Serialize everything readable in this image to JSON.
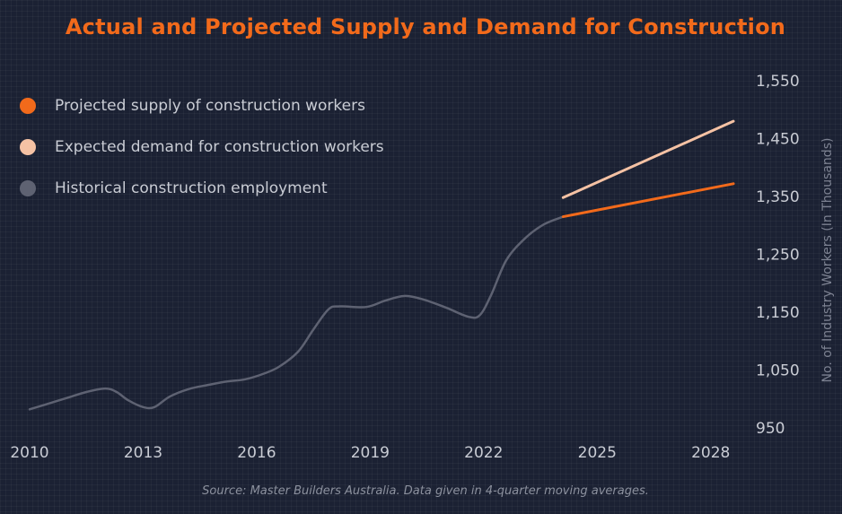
{
  "chart_data": {
    "type": "line",
    "title": "Actual and Projected Supply and Demand for Construction",
    "ylabel": "No. of Industry Workers (In Thousands)",
    "source": "Source: Master Builders Australia. Data given in 4-quarter moving averages.",
    "x_ticks": [
      "2010",
      "2013",
      "2016",
      "2019",
      "2022",
      "2025",
      "2028"
    ],
    "y_ticks": [
      "950",
      "1,050",
      "1,150",
      "1,250",
      "1,350",
      "1,450",
      "1,550"
    ],
    "xlim": [
      2010,
      2028.6
    ],
    "ylim": [
      950,
      1550
    ],
    "grid": true,
    "legend_position": "top-left",
    "series": [
      {
        "name": "Projected supply of construction workers",
        "color": "#f26a1b",
        "points": [
          [
            2024.1,
            1315
          ],
          [
            2028.6,
            1372
          ]
        ]
      },
      {
        "name": "Expected demand for construction workers",
        "color": "#f5c2a4",
        "points": [
          [
            2024.1,
            1348
          ],
          [
            2028.6,
            1480
          ]
        ]
      },
      {
        "name": "Historical construction employment",
        "color": "#5e6272",
        "points": [
          [
            2010.0,
            982
          ],
          [
            2010.5,
            992
          ],
          [
            2011.0,
            1002
          ],
          [
            2011.5,
            1012
          ],
          [
            2012.0,
            1018
          ],
          [
            2012.3,
            1012
          ],
          [
            2012.6,
            998
          ],
          [
            2013.0,
            986
          ],
          [
            2013.3,
            986
          ],
          [
            2013.7,
            1004
          ],
          [
            2014.2,
            1017
          ],
          [
            2014.7,
            1024
          ],
          [
            2015.2,
            1030
          ],
          [
            2015.7,
            1034
          ],
          [
            2016.2,
            1044
          ],
          [
            2016.6,
            1056
          ],
          [
            2017.1,
            1082
          ],
          [
            2017.5,
            1120
          ],
          [
            2017.9,
            1155
          ],
          [
            2018.2,
            1160
          ],
          [
            2018.9,
            1159
          ],
          [
            2019.4,
            1170
          ],
          [
            2019.9,
            1178
          ],
          [
            2020.4,
            1172
          ],
          [
            2021.0,
            1158
          ],
          [
            2021.6,
            1142
          ],
          [
            2021.9,
            1145
          ],
          [
            2022.2,
            1180
          ],
          [
            2022.6,
            1240
          ],
          [
            2023.1,
            1278
          ],
          [
            2023.6,
            1302
          ],
          [
            2024.1,
            1315
          ]
        ]
      }
    ]
  }
}
